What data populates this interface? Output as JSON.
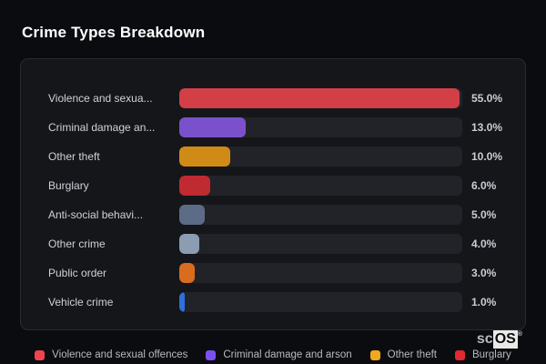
{
  "page": {
    "title": "Crime Types Breakdown",
    "background_color": "#0b0c0f",
    "card_background_color": "#15161a",
    "track_color": "#222329"
  },
  "chart_data": {
    "type": "bar",
    "orientation": "horizontal",
    "unit": "percent",
    "title": "Crime Types Breakdown",
    "categories": [
      "Violence and sexua...",
      "Criminal damage an...",
      "Other theft",
      "Burglary",
      "Anti-social behavi...",
      "Other crime",
      "Public order",
      "Vehicle crime"
    ],
    "values": [
      55.0,
      13.0,
      10.0,
      6.0,
      5.0,
      4.0,
      3.0,
      1.0
    ],
    "value_labels": [
      "55.0%",
      "13.0%",
      "10.0%",
      "6.0%",
      "5.0%",
      "4.0%",
      "3.0%",
      "1.0%"
    ],
    "bar_colors": [
      "#d23f47",
      "#7a51cb",
      "#d08b17",
      "#c02a31",
      "#5c6c87",
      "#8c9cb1",
      "#d96c1e",
      "#2e70dd"
    ],
    "axis_max_value": 55.5,
    "grid": false,
    "legend_position": "bottom",
    "legend": [
      {
        "label": "Violence and sexual offences",
        "color": "#ee4450"
      },
      {
        "label": "Criminal damage and arson",
        "color": "#7b50f0"
      },
      {
        "label": "Other theft",
        "color": "#f0a81c"
      },
      {
        "label": "Burglary",
        "color": "#e22832"
      }
    ]
  },
  "logo": {
    "prefix": "sc",
    "boxed": "OS",
    "registered": "®"
  }
}
